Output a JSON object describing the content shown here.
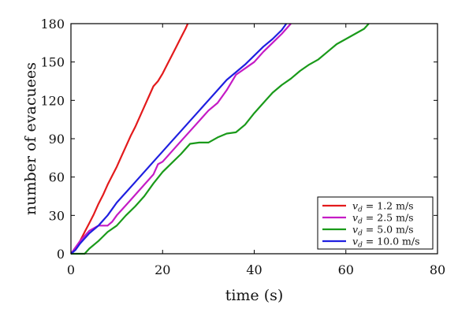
{
  "chart_data": {
    "type": "line",
    "title": "",
    "xlabel": "time (s)",
    "ylabel": "number of evacuees",
    "xlim": [
      0,
      80
    ],
    "ylim": [
      0,
      180
    ],
    "xticks": [
      0,
      20,
      40,
      60,
      80
    ],
    "yticks": [
      0,
      30,
      60,
      90,
      120,
      150,
      180
    ],
    "grid": false,
    "legend_position": "bottom-right",
    "series": [
      {
        "name": "v_d = 1.2 m/s",
        "label_prefix": "v",
        "label_sub": "d",
        "label_value": " = 1.2 m/s",
        "color": "#e31a1c",
        "x": [
          0,
          1,
          2,
          3,
          4,
          5,
          6,
          7,
          8,
          9,
          10,
          11,
          12,
          13,
          14,
          15,
          16,
          17,
          18,
          19,
          20,
          21,
          22,
          23,
          24,
          25,
          25.5
        ],
        "y": [
          0,
          4,
          10,
          17,
          24,
          31,
          39,
          46,
          54,
          61,
          68,
          76,
          84,
          92,
          99,
          107,
          115,
          123,
          131,
          135,
          141,
          148,
          155,
          162,
          169,
          176,
          180
        ]
      },
      {
        "name": "v_d = 2.5 m/s",
        "label_prefix": "v",
        "label_sub": "d",
        "label_value": " = 2.5 m/s",
        "color": "#c51bc5",
        "x": [
          0,
          2,
          4,
          6,
          7,
          8,
          9,
          10,
          12,
          14,
          16,
          18,
          19,
          20,
          22,
          24,
          26,
          28,
          30,
          32,
          34,
          36,
          38,
          40,
          42,
          44,
          46,
          48
        ],
        "y": [
          0,
          10,
          18,
          22,
          22,
          22,
          25,
          30,
          38,
          46,
          54,
          62,
          70,
          72,
          80,
          88,
          96,
          104,
          112,
          118,
          128,
          140,
          145,
          150,
          158,
          165,
          172,
          180
        ]
      },
      {
        "name": "v_d = 5.0 m/s",
        "label_prefix": "v",
        "label_sub": "d",
        "label_value": " = 5.0 m/s",
        "color": "#1a9a1a",
        "x": [
          0,
          2,
          3,
          4,
          6,
          8,
          10,
          12,
          14,
          16,
          18,
          20,
          22,
          24,
          26,
          28,
          30,
          32,
          34,
          36,
          38,
          40,
          42,
          44,
          46,
          48,
          50,
          52,
          54,
          56,
          58,
          60,
          62,
          64,
          65
        ],
        "y": [
          0,
          0,
          0,
          4,
          10,
          17,
          22,
          30,
          37,
          45,
          55,
          64,
          71,
          78,
          86,
          87,
          87,
          91,
          94,
          95,
          101,
          110,
          118,
          126,
          132,
          137,
          143,
          148,
          152,
          158,
          164,
          168,
          172,
          176,
          180
        ]
      },
      {
        "name": "v_d = 10.0 m/s",
        "label_prefix": "v",
        "label_sub": "d",
        "label_value": " = 10.0 m/s",
        "color": "#1f1fe0",
        "x": [
          0,
          1,
          2,
          4,
          6,
          8,
          10,
          12,
          14,
          16,
          18,
          20,
          22,
          24,
          26,
          28,
          30,
          32,
          34,
          36,
          38,
          40,
          42,
          44,
          46,
          47
        ],
        "y": [
          0,
          3,
          8,
          16,
          22,
          30,
          40,
          48,
          56,
          64,
          72,
          80,
          88,
          96,
          104,
          112,
          120,
          128,
          136,
          142,
          148,
          155,
          162,
          168,
          175,
          180
        ]
      }
    ]
  }
}
